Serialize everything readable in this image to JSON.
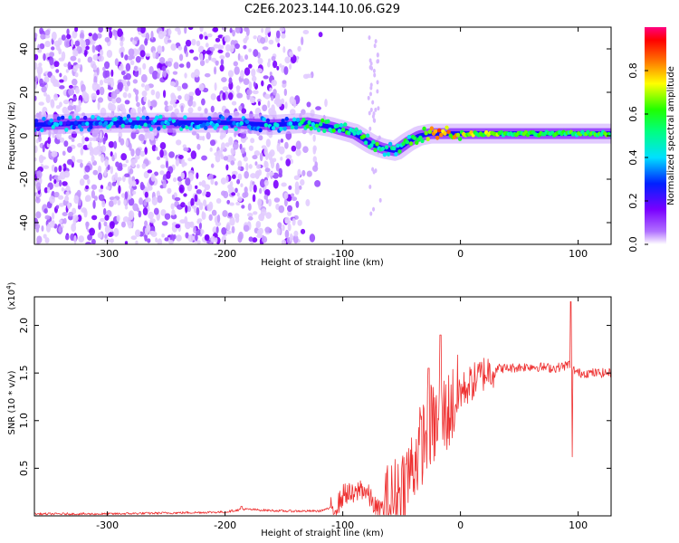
{
  "title": "C2E6.2023.144.10.06.G29",
  "chart_data": [
    {
      "type": "heatmap",
      "xlabel": "Height of straight line (km)",
      "ylabel": "Frequency (Hz)",
      "xlim": [
        -362,
        128
      ],
      "ylim": [
        -50,
        50
      ],
      "xticks": [
        -300,
        -200,
        -100,
        0,
        100
      ],
      "yticks": [
        -40,
        -20,
        0,
        20,
        40
      ],
      "colorbar": {
        "label": "Normalized spectral amplitude",
        "range": [
          0.0,
          1.0
        ],
        "ticks": [
          0.0,
          0.2,
          0.4,
          0.6,
          0.8
        ],
        "colormap": [
          "#ffffff",
          "#7a00ff",
          "#0000ff",
          "#00ffff",
          "#00ff00",
          "#ffff00",
          "#ff0000",
          "#ff0088"
        ]
      },
      "ridge": {
        "x": [
          -362,
          -300,
          -250,
          -200,
          -160,
          -130,
          -110,
          -90,
          -75,
          -65,
          -55,
          -45,
          -35,
          -25,
          -15,
          0,
          50,
          100,
          128
        ],
        "frequency": [
          5,
          6,
          6,
          6,
          5,
          6,
          4,
          1,
          -4,
          -6,
          -7,
          -3,
          0,
          1,
          1,
          1,
          1,
          1,
          1
        ],
        "amplitude": [
          0.3,
          0.35,
          0.35,
          0.35,
          0.35,
          0.5,
          0.55,
          0.55,
          0.55,
          0.5,
          0.45,
          0.5,
          0.6,
          0.75,
          0.8,
          0.7,
          0.55,
          0.55,
          0.55
        ]
      },
      "noise_region_x": [
        -362,
        -130
      ]
    },
    {
      "type": "line",
      "xlabel": "Height of straight line (km)",
      "ylabel": "SNR (10 * v/v)",
      "scale_label": "(x10",
      "scale_exponent": "4",
      "scale_suffix": ")",
      "xlim": [
        -362,
        128
      ],
      "ylim": [
        0,
        2.3
      ],
      "xticks": [
        -300,
        -200,
        -100,
        0,
        100
      ],
      "yticks": [
        0.5,
        1.0,
        1.5,
        2.0
      ],
      "ytick_labels": [
        "0.5",
        "1.0",
        "1.5",
        "2.0"
      ],
      "color": "#ee3030",
      "series": [
        {
          "x": [
            -362,
            -300,
            -250,
            -200,
            -185,
            -150,
            -120,
            -105,
            -98,
            -90,
            -85,
            -80,
            -70,
            -60,
            -55,
            -50,
            -45,
            -40,
            -35,
            -30,
            -25,
            -20,
            -15,
            -10,
            -5,
            0,
            10,
            20,
            30,
            40,
            60,
            80,
            90,
            93,
            95,
            100,
            128
          ],
          "y": [
            0.02,
            0.02,
            0.03,
            0.04,
            0.07,
            0.05,
            0.05,
            0.1,
            0.25,
            0.2,
            0.3,
            0.25,
            0.05,
            0.12,
            0.2,
            0.3,
            0.4,
            0.55,
            0.7,
            0.85,
            0.95,
            0.95,
            1.05,
            1.1,
            1.2,
            1.3,
            1.4,
            1.5,
            1.55,
            1.55,
            1.57,
            1.55,
            1.58,
            1.6,
            1.55,
            1.5,
            1.5
          ]
        }
      ]
    }
  ]
}
